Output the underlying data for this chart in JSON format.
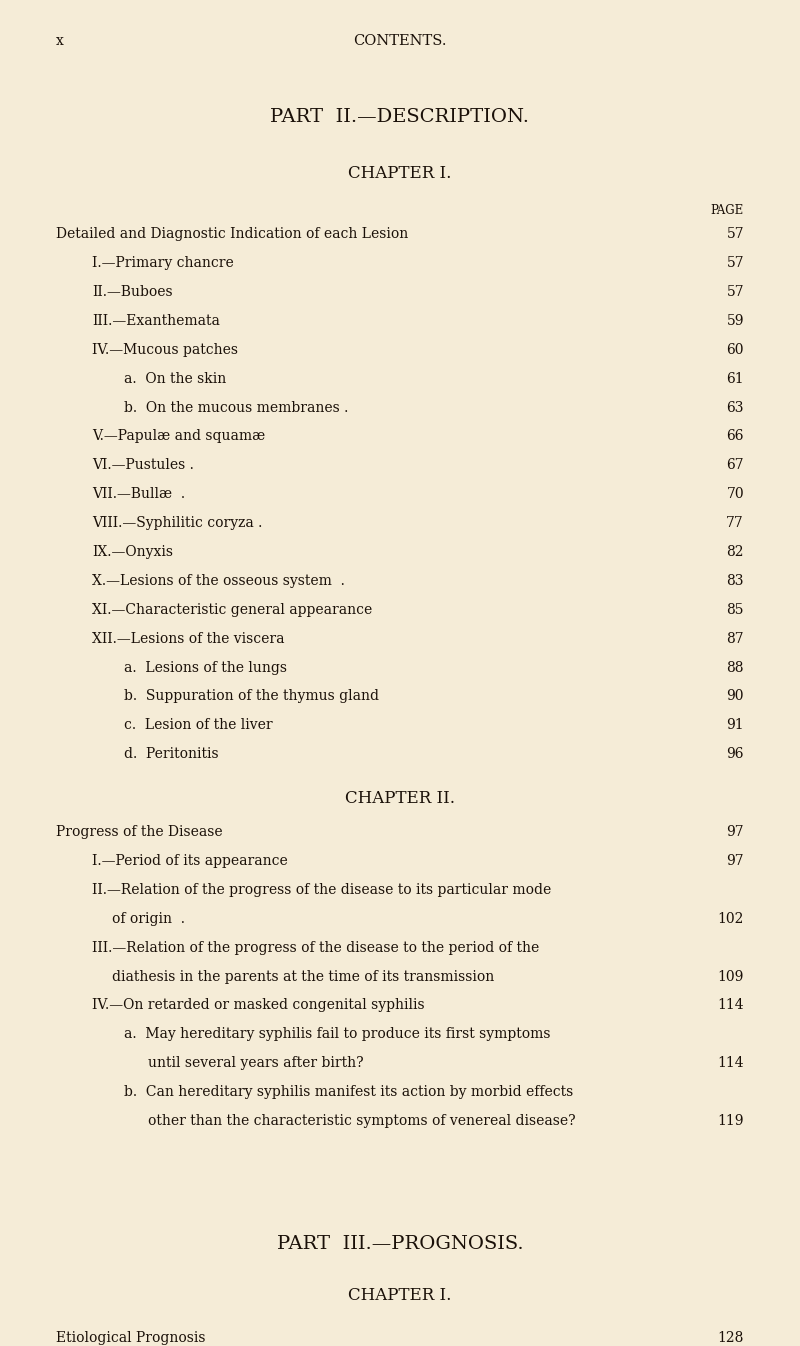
{
  "bg_color": "#f5ecd7",
  "text_color": "#1a1008",
  "page_width": 8.0,
  "page_height": 13.46,
  "dpi": 100,
  "header_x": "x",
  "header_center": "CONTENTS.",
  "part2_title": "PART  II.—DESCRIPTION.",
  "chapter1_title": "CHAPTER I.",
  "page_label": "PAGE",
  "entries_ch1": [
    {
      "text": "Detailed and Diagnostic Indication of each Lesion",
      "indent": 0,
      "page": "57",
      "small_caps": true
    },
    {
      "text": "I.—Primary chancre",
      "indent": 1,
      "page": "57",
      "small_caps": false
    },
    {
      "text": "II.—Buboes",
      "indent": 1,
      "page": "57",
      "small_caps": false
    },
    {
      "text": "III.—Exanthemata",
      "indent": 1,
      "page": "59",
      "small_caps": false
    },
    {
      "text": "IV.—Mucous patches",
      "indent": 1,
      "page": "60",
      "small_caps": false
    },
    {
      "text": "a.  On the skin",
      "indent": 2,
      "page": "61",
      "small_caps": false
    },
    {
      "text": "b.  On the mucous membranes .",
      "indent": 2,
      "page": "63",
      "small_caps": false
    },
    {
      "text": "V.—Papulæ and squamæ",
      "indent": 1,
      "page": "66",
      "small_caps": false
    },
    {
      "text": "VI.—Pustules .",
      "indent": 1,
      "page": "67",
      "small_caps": false
    },
    {
      "text": "VII.—Bullæ  .",
      "indent": 1,
      "page": "70",
      "small_caps": false
    },
    {
      "text": "VIII.—Syphilitic coryza .",
      "indent": 1,
      "page": "77",
      "small_caps": false
    },
    {
      "text": "IX.—Onyxis",
      "indent": 1,
      "page": "82",
      "small_caps": false
    },
    {
      "text": "X.—Lesions of the osseous system  .",
      "indent": 1,
      "page": "83",
      "small_caps": false
    },
    {
      "text": "XI.—Characteristic general appearance",
      "indent": 1,
      "page": "85",
      "small_caps": false
    },
    {
      "text": "XII.—Lesions of the viscera",
      "indent": 1,
      "page": "87",
      "small_caps": false
    },
    {
      "text": "a.  Lesions of the lungs",
      "indent": 2,
      "page": "88",
      "small_caps": false
    },
    {
      "text": "b.  Suppuration of the thymus gland",
      "indent": 2,
      "page": "90",
      "small_caps": false
    },
    {
      "text": "c.  Lesion of the liver",
      "indent": 2,
      "page": "91",
      "small_caps": false
    },
    {
      "text": "d.  Peritonitis",
      "indent": 2,
      "page": "96",
      "small_caps": false
    }
  ],
  "chapter2_title": "CHAPTER II.",
  "entries_ch2_main": [
    {
      "text": "Progress of the Disease",
      "indent": 0,
      "page": "97",
      "small_caps": true
    },
    {
      "text": "I.—Period of its appearance",
      "indent": 1,
      "page": "97",
      "small_caps": false
    }
  ],
  "entry_II_line1": "II.—Relation of the progress of the disease to its particular mode",
  "entry_II_line2": "of origin  .",
  "entry_II_page": "102",
  "entry_III_line1": "III.—Relation of the progress of the disease to the period of the",
  "entry_III_line2": "diathesis in the parents at the time of its transmission",
  "entry_III_page": "109",
  "entry_IV_line1": "IV.—On retarded or masked congenital syphilis",
  "entry_IV_page": "114",
  "entry_A_line1": "a.  May hereditary syphilis fail to produce its first symptoms",
  "entry_A_line2": "until several years after birth?",
  "entry_A_page": "114",
  "entry_B_line1": "b.  Can hereditary syphilis manifest its action by morbid effects",
  "entry_B_line2": "other than the characteristic symptoms of venereal disease?",
  "entry_B_page": "119",
  "part3_title": "PART  III.—PROGNOSIS.",
  "chapter3_title": "CHAPTER I.",
  "entry_etiological": "Etiological Prognosis",
  "entry_etiological_page": "128"
}
